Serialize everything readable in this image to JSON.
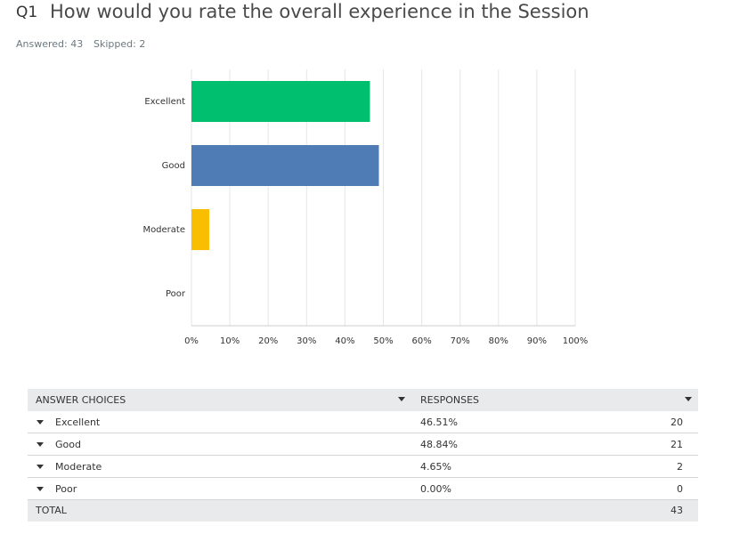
{
  "header": {
    "number": "Q1",
    "title": "How would you rate the overall experience in the Session",
    "answered": "Answered: 43",
    "skipped": "Skipped: 2"
  },
  "chart_data": {
    "type": "bar",
    "orientation": "horizontal",
    "categories": [
      "Excellent",
      "Good",
      "Moderate",
      "Poor"
    ],
    "values": [
      46.51,
      48.84,
      4.65,
      0
    ],
    "colors": [
      "#00bf6f",
      "#507cb6",
      "#f9be00",
      "#6bc8cd"
    ],
    "xlim": [
      0,
      100
    ],
    "xticks": [
      {
        "value": 0,
        "label": "0%"
      },
      {
        "value": 10,
        "label": "10%"
      },
      {
        "value": 20,
        "label": "20%"
      },
      {
        "value": 30,
        "label": "30%"
      },
      {
        "value": 40,
        "label": "40%"
      },
      {
        "value": 50,
        "label": "50%"
      },
      {
        "value": 60,
        "label": "60%"
      },
      {
        "value": 70,
        "label": "70%"
      },
      {
        "value": 80,
        "label": "80%"
      },
      {
        "value": 90,
        "label": "90%"
      },
      {
        "value": 100,
        "label": "100%"
      }
    ],
    "grid": true
  },
  "table": {
    "headers": [
      "ANSWER CHOICES",
      "RESPONSES"
    ],
    "rows": [
      {
        "choice": "Excellent",
        "percent": "46.51%",
        "count": 20
      },
      {
        "choice": "Good",
        "percent": "48.84%",
        "count": 21
      },
      {
        "choice": "Moderate",
        "percent": "4.65%",
        "count": 2
      },
      {
        "choice": "Poor",
        "percent": "0.00%",
        "count": 0
      }
    ],
    "total": {
      "label": "TOTAL",
      "count": 43
    }
  }
}
